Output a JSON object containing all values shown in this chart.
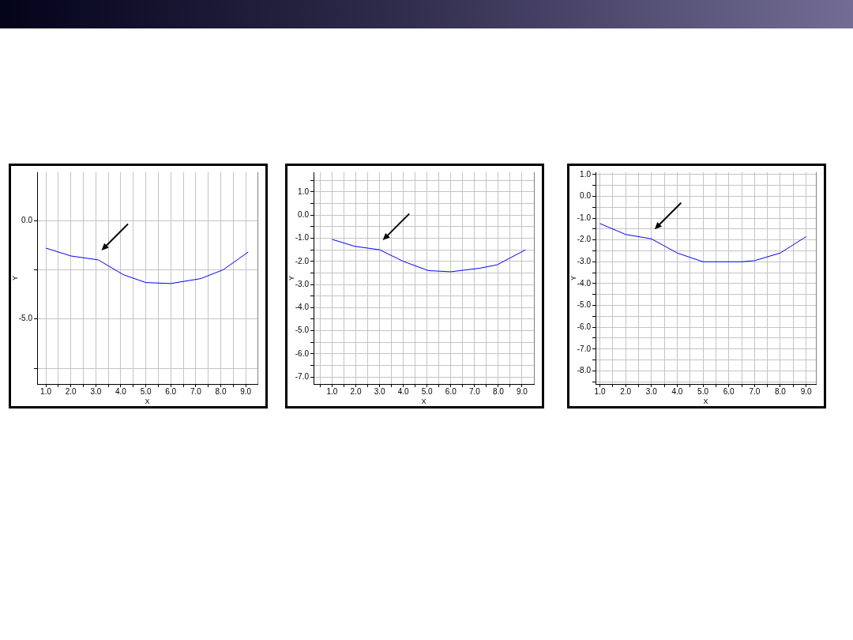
{
  "chart_data": [
    {
      "type": "line",
      "xlabel": "X",
      "ylabel": "Y",
      "color": "#0000ff",
      "marker": "none",
      "grid": true,
      "x": [
        1.0,
        2.0,
        3.1,
        4.1,
        5.0,
        6.0,
        7.2,
        8.1,
        9.1
      ],
      "values": [
        -1.4,
        -1.8,
        -2.0,
        -2.75,
        -3.15,
        -3.2,
        -2.95,
        -2.5,
        -1.6
      ],
      "xlim": [
        0.65,
        9.47
      ],
      "xticks": [
        {
          "value": 1,
          "label": "1.0"
        },
        {
          "value": 1.5,
          "label": null
        },
        {
          "value": 2,
          "label": "2.0"
        },
        {
          "value": 2.5,
          "label": null
        },
        {
          "value": 3,
          "label": "3.0"
        },
        {
          "value": 3.5,
          "label": null
        },
        {
          "value": 4,
          "label": "4.0"
        },
        {
          "value": 4.5,
          "label": null
        },
        {
          "value": 5,
          "label": "5.0"
        },
        {
          "value": 5.5,
          "label": null
        },
        {
          "value": 6,
          "label": "6.0"
        },
        {
          "value": 6.5,
          "label": null
        },
        {
          "value": 7,
          "label": "7.0"
        },
        {
          "value": 7.5,
          "label": null
        },
        {
          "value": 8,
          "label": "8.0"
        },
        {
          "value": 8.5,
          "label": null
        },
        {
          "value": 9,
          "label": "9.0"
        }
      ],
      "ylim": [
        -8.3,
        2.45
      ],
      "yticks": [
        {
          "value": -7.5,
          "label": null
        },
        {
          "value": -5,
          "label": "-5.0"
        },
        {
          "value": -2.5,
          "label": null
        },
        {
          "value": 0,
          "label": "0.0"
        }
      ]
    },
    {
      "type": "line",
      "xlabel": "X",
      "ylabel": "Y",
      "color": "#0000ff",
      "marker": "none",
      "grid": true,
      "x": [
        1.0,
        1.95,
        3.0,
        4.0,
        5.05,
        6.0,
        7.2,
        7.95,
        9.15
      ],
      "values": [
        -1.05,
        -1.35,
        -1.5,
        -2.0,
        -2.4,
        -2.45,
        -2.3,
        -2.15,
        -1.5
      ],
      "xlim": [
        0.22,
        9.5
      ],
      "xticks": [
        {
          "value": 0.5,
          "label": null
        },
        {
          "value": 1,
          "label": "1.0"
        },
        {
          "value": 1.5,
          "label": null
        },
        {
          "value": 2,
          "label": "2.0"
        },
        {
          "value": 2.5,
          "label": null
        },
        {
          "value": 3,
          "label": "3.0"
        },
        {
          "value": 3.5,
          "label": null
        },
        {
          "value": 4,
          "label": "4.0"
        },
        {
          "value": 4.5,
          "label": null
        },
        {
          "value": 5,
          "label": "5.0"
        },
        {
          "value": 5.5,
          "label": null
        },
        {
          "value": 6,
          "label": "6.0"
        },
        {
          "value": 6.5,
          "label": null
        },
        {
          "value": 7,
          "label": "7.0"
        },
        {
          "value": 7.5,
          "label": null
        },
        {
          "value": 8,
          "label": "8.0"
        },
        {
          "value": 8.5,
          "label": null
        },
        {
          "value": 9,
          "label": "9.0"
        }
      ],
      "ylim": [
        -7.3,
        1.85
      ],
      "yticks": [
        {
          "value": -7,
          "label": "-7.0"
        },
        {
          "value": -6.5,
          "label": null
        },
        {
          "value": -6,
          "label": "-6.0"
        },
        {
          "value": -5.5,
          "label": null
        },
        {
          "value": -5,
          "label": "-5.0"
        },
        {
          "value": -4.5,
          "label": null
        },
        {
          "value": -4,
          "label": "-4.0"
        },
        {
          "value": -3.5,
          "label": null
        },
        {
          "value": -3,
          "label": "-3.0"
        },
        {
          "value": -2.5,
          "label": null
        },
        {
          "value": -2,
          "label": "-2.0"
        },
        {
          "value": -1.5,
          "label": null
        },
        {
          "value": -1,
          "label": "-1.0"
        },
        {
          "value": -0.5,
          "label": null
        },
        {
          "value": 0,
          "label": "0.0"
        },
        {
          "value": 0.5,
          "label": null
        },
        {
          "value": 1,
          "label": "1.0"
        },
        {
          "value": 1.5,
          "label": null
        }
      ]
    },
    {
      "type": "line",
      "xlabel": "X",
      "ylabel": "Y",
      "color": "#0000ff",
      "marker": "none",
      "grid": true,
      "x": [
        1.0,
        2.0,
        3.0,
        4.0,
        5.0,
        6.5,
        7.0,
        8.0,
        9.0
      ],
      "values": [
        -1.25,
        -1.75,
        -1.95,
        -2.6,
        -3.0,
        -3.0,
        -2.95,
        -2.6,
        -1.85
      ],
      "xlim": [
        0.83,
        9.38
      ],
      "xticks": [
        {
          "value": 1,
          "label": "1.0"
        },
        {
          "value": 1.5,
          "label": null
        },
        {
          "value": 2,
          "label": "2.0"
        },
        {
          "value": 2.5,
          "label": null
        },
        {
          "value": 3,
          "label": "3.0"
        },
        {
          "value": 3.5,
          "label": null
        },
        {
          "value": 4,
          "label": "4.0"
        },
        {
          "value": 4.5,
          "label": null
        },
        {
          "value": 5,
          "label": "5.0"
        },
        {
          "value": 5.5,
          "label": null
        },
        {
          "value": 6,
          "label": "6.0"
        },
        {
          "value": 6.5,
          "label": null
        },
        {
          "value": 7,
          "label": "7.0"
        },
        {
          "value": 7.5,
          "label": null
        },
        {
          "value": 8,
          "label": "8.0"
        },
        {
          "value": 8.5,
          "label": null
        },
        {
          "value": 9,
          "label": "9.0"
        }
      ],
      "ylim": [
        -8.6,
        1.1
      ],
      "yticks": [
        {
          "value": -8.5,
          "label": null
        },
        {
          "value": -8,
          "label": "-8.0"
        },
        {
          "value": -7.5,
          "label": null
        },
        {
          "value": -7,
          "label": "-7.0"
        },
        {
          "value": -6.5,
          "label": null
        },
        {
          "value": -6,
          "label": "-6.0"
        },
        {
          "value": -5.5,
          "label": null
        },
        {
          "value": -5,
          "label": "-5.0"
        },
        {
          "value": -4.5,
          "label": null
        },
        {
          "value": -4,
          "label": "-4.0"
        },
        {
          "value": -3.5,
          "label": null
        },
        {
          "value": -3,
          "label": "-3.0"
        },
        {
          "value": -2.5,
          "label": null
        },
        {
          "value": -2,
          "label": "-2.0"
        },
        {
          "value": -1.5,
          "label": null
        },
        {
          "value": -1,
          "label": "-1.0"
        },
        {
          "value": -0.5,
          "label": null
        },
        {
          "value": 0,
          "label": "0.0"
        },
        {
          "value": 0.5,
          "label": null
        },
        {
          "value": 1,
          "label": "1.0"
        }
      ]
    }
  ]
}
